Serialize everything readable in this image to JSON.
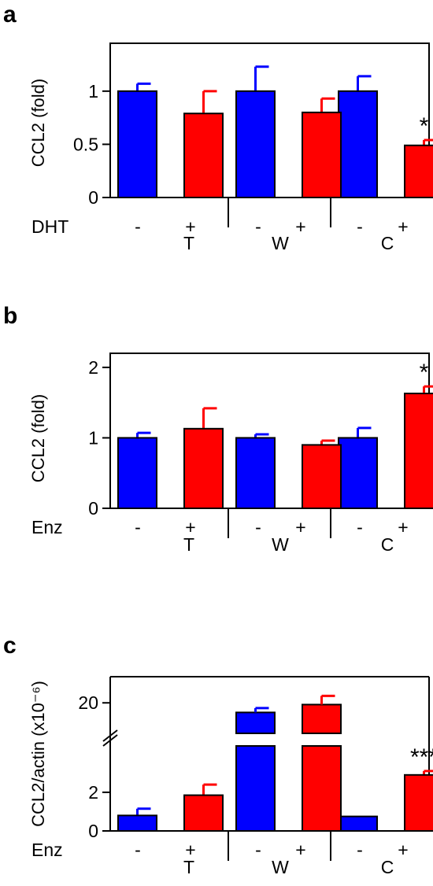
{
  "chart_data": [
    {
      "panel": "a",
      "type": "bar",
      "ylabel": "CCL2 (fold)",
      "treatment_label": "DHT",
      "groups": [
        "T",
        "W",
        "C"
      ],
      "conditions": [
        "-",
        "+"
      ],
      "ylim": [
        0,
        1.45
      ],
      "yticks": [
        {
          "v": 0,
          "t": "0"
        },
        {
          "v": 0.5,
          "t": "0.5"
        },
        {
          "v": 1,
          "t": "1"
        }
      ],
      "colors": {
        "-": "#0000ff",
        "+": "#ff0000"
      },
      "series": [
        {
          "condition": "-",
          "values": [
            1.0,
            1.0,
            1.0
          ],
          "errors": [
            0.07,
            0.23,
            0.14
          ]
        },
        {
          "condition": "+",
          "values": [
            0.79,
            0.8,
            0.49
          ],
          "errors": [
            0.21,
            0.13,
            0.05
          ]
        }
      ],
      "annotations": [
        {
          "group": 2,
          "condition": "+",
          "text": "*"
        }
      ]
    },
    {
      "panel": "b",
      "type": "bar",
      "ylabel": "CCL2 (fold)",
      "treatment_label": "Enz",
      "groups": [
        "T",
        "W",
        "C"
      ],
      "conditions": [
        "-",
        "+"
      ],
      "ylim": [
        0,
        2.2
      ],
      "yticks": [
        {
          "v": 0,
          "t": "0"
        },
        {
          "v": 1,
          "t": "1"
        },
        {
          "v": 2,
          "t": "2"
        }
      ],
      "colors": {
        "-": "#0000ff",
        "+": "#ff0000"
      },
      "series": [
        {
          "condition": "-",
          "values": [
            1.0,
            1.0,
            1.0
          ],
          "errors": [
            0.07,
            0.05,
            0.14
          ]
        },
        {
          "condition": "+",
          "values": [
            1.13,
            0.9,
            1.63
          ],
          "errors": [
            0.29,
            0.06,
            0.1
          ]
        }
      ],
      "annotations": [
        {
          "group": 2,
          "condition": "+",
          "text": "*"
        }
      ]
    },
    {
      "panel": "c",
      "type": "bar",
      "ylabel": "CCL2/actin (x10⁻⁶)",
      "treatment_label": "Enz",
      "groups": [
        "T",
        "W",
        "C"
      ],
      "conditions": [
        "-",
        "+"
      ],
      "broken_axis": true,
      "lower_ylim": [
        0,
        4.4
      ],
      "upper_ylim": [
        16.5,
        23
      ],
      "yticks_lower": [
        {
          "v": 0,
          "t": "0"
        },
        {
          "v": 2,
          "t": "2"
        }
      ],
      "yticks_upper": [
        {
          "v": 20,
          "t": "20"
        }
      ],
      "colors": {
        "-": "#0000ff",
        "+": "#ff0000"
      },
      "series": [
        {
          "condition": "-",
          "values": [
            0.8,
            18.9,
            0.75
          ],
          "errors": [
            0.35,
            0.5,
            0.0
          ]
        },
        {
          "condition": "+",
          "values": [
            1.85,
            19.8,
            2.9
          ],
          "errors": [
            0.55,
            1.0,
            0.2
          ]
        }
      ],
      "annotations": [
        {
          "group": 2,
          "condition": "+",
          "text": "***"
        }
      ]
    }
  ]
}
